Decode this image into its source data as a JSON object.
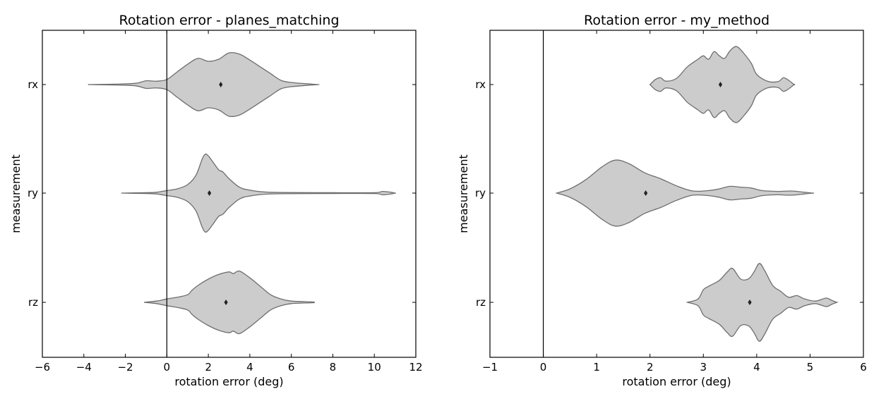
{
  "chart_data": [
    {
      "type": "violin",
      "title": "Rotation error - planes_matching",
      "xlabel": "rotation error (deg)",
      "ylabel": "measurement",
      "categories": [
        "rx",
        "ry",
        "rz"
      ],
      "xlim": [
        -6,
        12
      ],
      "xticks": [
        "−6",
        "−4",
        "−2",
        "0",
        "2",
        "4",
        "6",
        "8",
        "10",
        "12"
      ],
      "xtick_values": [
        -6,
        -4,
        -2,
        0,
        2,
        4,
        6,
        8,
        10,
        12
      ],
      "reference_line_x": 0,
      "series": [
        {
          "category": "rx",
          "median": 2.6,
          "profile": [
            [
              -3.8,
              0.0
            ],
            [
              -2.5,
              0.01
            ],
            [
              -1.5,
              0.03
            ],
            [
              -1.0,
              0.09
            ],
            [
              -0.5,
              0.08
            ],
            [
              0.0,
              0.12
            ],
            [
              0.5,
              0.3
            ],
            [
              1.0,
              0.48
            ],
            [
              1.5,
              0.62
            ],
            [
              2.0,
              0.55
            ],
            [
              2.5,
              0.6
            ],
            [
              3.0,
              0.75
            ],
            [
              3.5,
              0.72
            ],
            [
              4.0,
              0.58
            ],
            [
              4.5,
              0.42
            ],
            [
              5.0,
              0.26
            ],
            [
              5.5,
              0.1
            ],
            [
              6.0,
              0.05
            ],
            [
              7.0,
              0.01
            ],
            [
              7.3,
              0.0
            ]
          ]
        },
        {
          "category": "ry",
          "median": 2.05,
          "profile": [
            [
              -2.2,
              0.0
            ],
            [
              -1.0,
              0.01
            ],
            [
              -0.5,
              0.02
            ],
            [
              0.0,
              0.06
            ],
            [
              0.5,
              0.1
            ],
            [
              1.0,
              0.2
            ],
            [
              1.4,
              0.42
            ],
            [
              1.7,
              0.8
            ],
            [
              1.85,
              0.92
            ],
            [
              2.0,
              0.88
            ],
            [
              2.2,
              0.75
            ],
            [
              2.5,
              0.55
            ],
            [
              2.7,
              0.5
            ],
            [
              3.0,
              0.34
            ],
            [
              3.5,
              0.14
            ],
            [
              4.0,
              0.07
            ],
            [
              5.0,
              0.02
            ],
            [
              8.0,
              0.01
            ],
            [
              10.0,
              0.01
            ],
            [
              10.4,
              0.04
            ],
            [
              10.8,
              0.02
            ],
            [
              11.0,
              0.0
            ]
          ]
        },
        {
          "category": "rz",
          "median": 2.85,
          "profile": [
            [
              -1.1,
              0.0
            ],
            [
              -0.5,
              0.03
            ],
            [
              0.0,
              0.08
            ],
            [
              0.5,
              0.12
            ],
            [
              1.0,
              0.18
            ],
            [
              1.2,
              0.28
            ],
            [
              1.5,
              0.4
            ],
            [
              2.0,
              0.55
            ],
            [
              2.5,
              0.66
            ],
            [
              3.0,
              0.72
            ],
            [
              3.2,
              0.68
            ],
            [
              3.5,
              0.74
            ],
            [
              4.0,
              0.58
            ],
            [
              4.5,
              0.38
            ],
            [
              5.0,
              0.18
            ],
            [
              5.5,
              0.08
            ],
            [
              6.0,
              0.03
            ],
            [
              7.0,
              0.01
            ],
            [
              7.1,
              0.0
            ]
          ]
        }
      ]
    },
    {
      "type": "violin",
      "title": "Rotation error - my_method",
      "xlabel": "rotation error (deg)",
      "ylabel": "measurement",
      "categories": [
        "rx",
        "ry",
        "rz"
      ],
      "xlim": [
        -1,
        6
      ],
      "xticks": [
        "−1",
        "0",
        "1",
        "2",
        "3",
        "4",
        "5",
        "6"
      ],
      "xtick_values": [
        -1,
        0,
        1,
        2,
        3,
        4,
        5,
        6
      ],
      "reference_line_x": 0,
      "series": [
        {
          "category": "rx",
          "median": 3.32,
          "profile": [
            [
              2.0,
              0.0
            ],
            [
              2.1,
              0.12
            ],
            [
              2.2,
              0.16
            ],
            [
              2.3,
              0.08
            ],
            [
              2.5,
              0.15
            ],
            [
              2.7,
              0.42
            ],
            [
              2.9,
              0.6
            ],
            [
              3.0,
              0.68
            ],
            [
              3.1,
              0.6
            ],
            [
              3.2,
              0.78
            ],
            [
              3.3,
              0.68
            ],
            [
              3.4,
              0.62
            ],
            [
              3.5,
              0.8
            ],
            [
              3.62,
              0.9
            ],
            [
              3.75,
              0.75
            ],
            [
              3.9,
              0.5
            ],
            [
              4.0,
              0.24
            ],
            [
              4.2,
              0.08
            ],
            [
              4.4,
              0.07
            ],
            [
              4.5,
              0.16
            ],
            [
              4.6,
              0.1
            ],
            [
              4.7,
              0.0
            ]
          ]
        },
        {
          "category": "ry",
          "median": 1.92,
          "profile": [
            [
              0.25,
              0.0
            ],
            [
              0.5,
              0.1
            ],
            [
              0.8,
              0.32
            ],
            [
              1.1,
              0.62
            ],
            [
              1.35,
              0.78
            ],
            [
              1.6,
              0.7
            ],
            [
              1.9,
              0.48
            ],
            [
              2.2,
              0.34
            ],
            [
              2.5,
              0.17
            ],
            [
              2.8,
              0.05
            ],
            [
              3.1,
              0.06
            ],
            [
              3.3,
              0.1
            ],
            [
              3.5,
              0.16
            ],
            [
              3.7,
              0.14
            ],
            [
              3.9,
              0.12
            ],
            [
              4.1,
              0.06
            ],
            [
              4.4,
              0.04
            ],
            [
              4.65,
              0.05
            ],
            [
              4.9,
              0.02
            ],
            [
              5.05,
              0.0
            ]
          ]
        },
        {
          "category": "rz",
          "median": 3.87,
          "profile": [
            [
              2.7,
              0.0
            ],
            [
              2.9,
              0.08
            ],
            [
              3.0,
              0.3
            ],
            [
              3.1,
              0.38
            ],
            [
              3.3,
              0.52
            ],
            [
              3.45,
              0.72
            ],
            [
              3.55,
              0.8
            ],
            [
              3.7,
              0.55
            ],
            [
              3.85,
              0.56
            ],
            [
              3.95,
              0.72
            ],
            [
              4.05,
              0.92
            ],
            [
              4.15,
              0.75
            ],
            [
              4.3,
              0.4
            ],
            [
              4.45,
              0.26
            ],
            [
              4.6,
              0.12
            ],
            [
              4.75,
              0.16
            ],
            [
              4.9,
              0.08
            ],
            [
              5.1,
              0.03
            ],
            [
              5.3,
              0.1
            ],
            [
              5.4,
              0.05
            ],
            [
              5.5,
              0.0
            ]
          ]
        }
      ]
    }
  ]
}
